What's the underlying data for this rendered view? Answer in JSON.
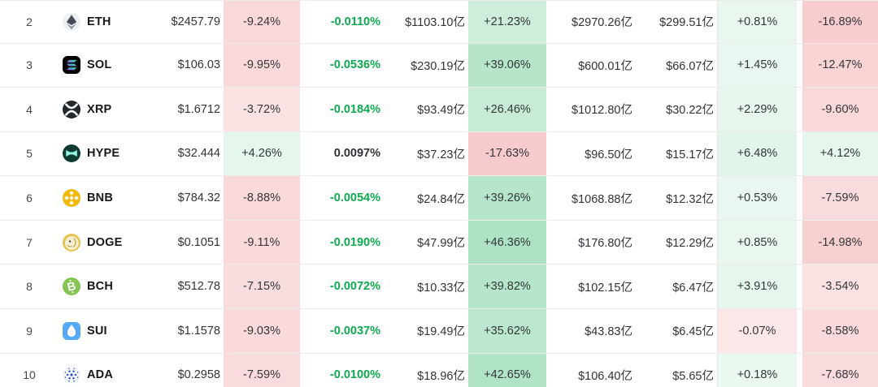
{
  "colors": {
    "funding_negative_green": "#0fa94f",
    "dark_text": "#303338",
    "row_divider": "#ececec",
    "column_separator": "#e7e7e7",
    "positive_tint_base": "hsl(146,48%,80%)",
    "negative_tint_base": "hsl(357,72%,88%)"
  },
  "table": {
    "currency_unit_suffix": "亿",
    "rows": [
      {
        "rank": "2",
        "symbol": "ETH",
        "icon": {
          "name": "ethereum-icon",
          "shape": "circle",
          "bg": "#edf0f3",
          "fg": "#474c5b"
        },
        "price": "$2457.79",
        "change_24h": "-9.24%",
        "funding_rate": "-0.0110%",
        "open_interest": "$1103.10亿",
        "oi_change_24h": "+21.23%",
        "market_cap": "$2970.26亿",
        "volume_24h": "$299.51亿",
        "change_a": "+0.81%",
        "change_b": "-16.89%"
      },
      {
        "rank": "3",
        "symbol": "SOL",
        "icon": {
          "name": "solana-icon",
          "shape": "rounded-square",
          "bg": "#000000",
          "fg": "#19fb9b"
        },
        "price": "$106.03",
        "change_24h": "-9.95%",
        "funding_rate": "-0.0536%",
        "open_interest": "$230.19亿",
        "oi_change_24h": "+39.06%",
        "market_cap": "$600.01亿",
        "volume_24h": "$66.07亿",
        "change_a": "+1.45%",
        "change_b": "-12.47%"
      },
      {
        "rank": "4",
        "symbol": "XRP",
        "icon": {
          "name": "xrp-icon",
          "shape": "circle",
          "bg": "#23292f",
          "fg": "#ffffff"
        },
        "price": "$1.6712",
        "change_24h": "-3.72%",
        "funding_rate": "-0.0184%",
        "open_interest": "$93.49亿",
        "oi_change_24h": "+26.46%",
        "market_cap": "$1012.80亿",
        "volume_24h": "$30.22亿",
        "change_a": "+2.29%",
        "change_b": "-9.60%"
      },
      {
        "rank": "5",
        "symbol": "HYPE",
        "icon": {
          "name": "hyperliquid-icon",
          "shape": "circle",
          "bg": "#0f3b33",
          "fg": "#96fbe4"
        },
        "price": "$32.444",
        "change_24h": "+4.26%",
        "funding_rate": "0.0097%",
        "open_interest": "$37.23亿",
        "oi_change_24h": "-17.63%",
        "market_cap": "$96.50亿",
        "volume_24h": "$15.17亿",
        "change_a": "+6.48%",
        "change_b": "+4.12%"
      },
      {
        "rank": "6",
        "symbol": "BNB",
        "icon": {
          "name": "bnb-icon",
          "shape": "circle",
          "bg": "#f0b90b",
          "fg": "#ffffff"
        },
        "price": "$784.32",
        "change_24h": "-8.88%",
        "funding_rate": "-0.0054%",
        "open_interest": "$24.84亿",
        "oi_change_24h": "+39.26%",
        "market_cap": "$1068.88亿",
        "volume_24h": "$12.32亿",
        "change_a": "+0.53%",
        "change_b": "-7.59%"
      },
      {
        "rank": "7",
        "symbol": "DOGE",
        "icon": {
          "name": "doge-icon",
          "shape": "circle",
          "bg": "#e3c54f",
          "fg": "#f6efd5"
        },
        "price": "$0.1051",
        "change_24h": "-9.11%",
        "funding_rate": "-0.0190%",
        "open_interest": "$47.99亿",
        "oi_change_24h": "+46.36%",
        "market_cap": "$176.80亿",
        "volume_24h": "$12.29亿",
        "change_a": "+0.85%",
        "change_b": "-14.98%"
      },
      {
        "rank": "8",
        "symbol": "BCH",
        "icon": {
          "name": "bitcoin-cash-icon",
          "shape": "circle",
          "bg": "#85c552",
          "fg": "#ffffff"
        },
        "price": "$512.78",
        "change_24h": "-7.15%",
        "funding_rate": "-0.0072%",
        "open_interest": "$10.33亿",
        "oi_change_24h": "+39.82%",
        "market_cap": "$102.15亿",
        "volume_24h": "$6.47亿",
        "change_a": "+3.91%",
        "change_b": "-3.54%"
      },
      {
        "rank": "9",
        "symbol": "SUI",
        "icon": {
          "name": "sui-icon",
          "shape": "rounded-square",
          "bg": "#55a9f5",
          "fg": "#ffffff"
        },
        "price": "$1.1578",
        "change_24h": "-9.03%",
        "funding_rate": "-0.0037%",
        "open_interest": "$19.49亿",
        "oi_change_24h": "+35.62%",
        "market_cap": "$43.83亿",
        "volume_24h": "$6.45亿",
        "change_a": "-0.07%",
        "change_b": "-8.58%"
      },
      {
        "rank": "10",
        "symbol": "ADA",
        "icon": {
          "name": "cardano-icon",
          "shape": "circle",
          "bg": "#f4f6f9",
          "fg": "#2750d5"
        },
        "price": "$0.2958",
        "change_24h": "-7.59%",
        "funding_rate": "-0.0100%",
        "open_interest": "$18.96亿",
        "oi_change_24h": "+42.65%",
        "market_cap": "$106.40亿",
        "volume_24h": "$5.65亿",
        "change_a": "+0.18%",
        "change_b": "-7.68%"
      }
    ]
  }
}
